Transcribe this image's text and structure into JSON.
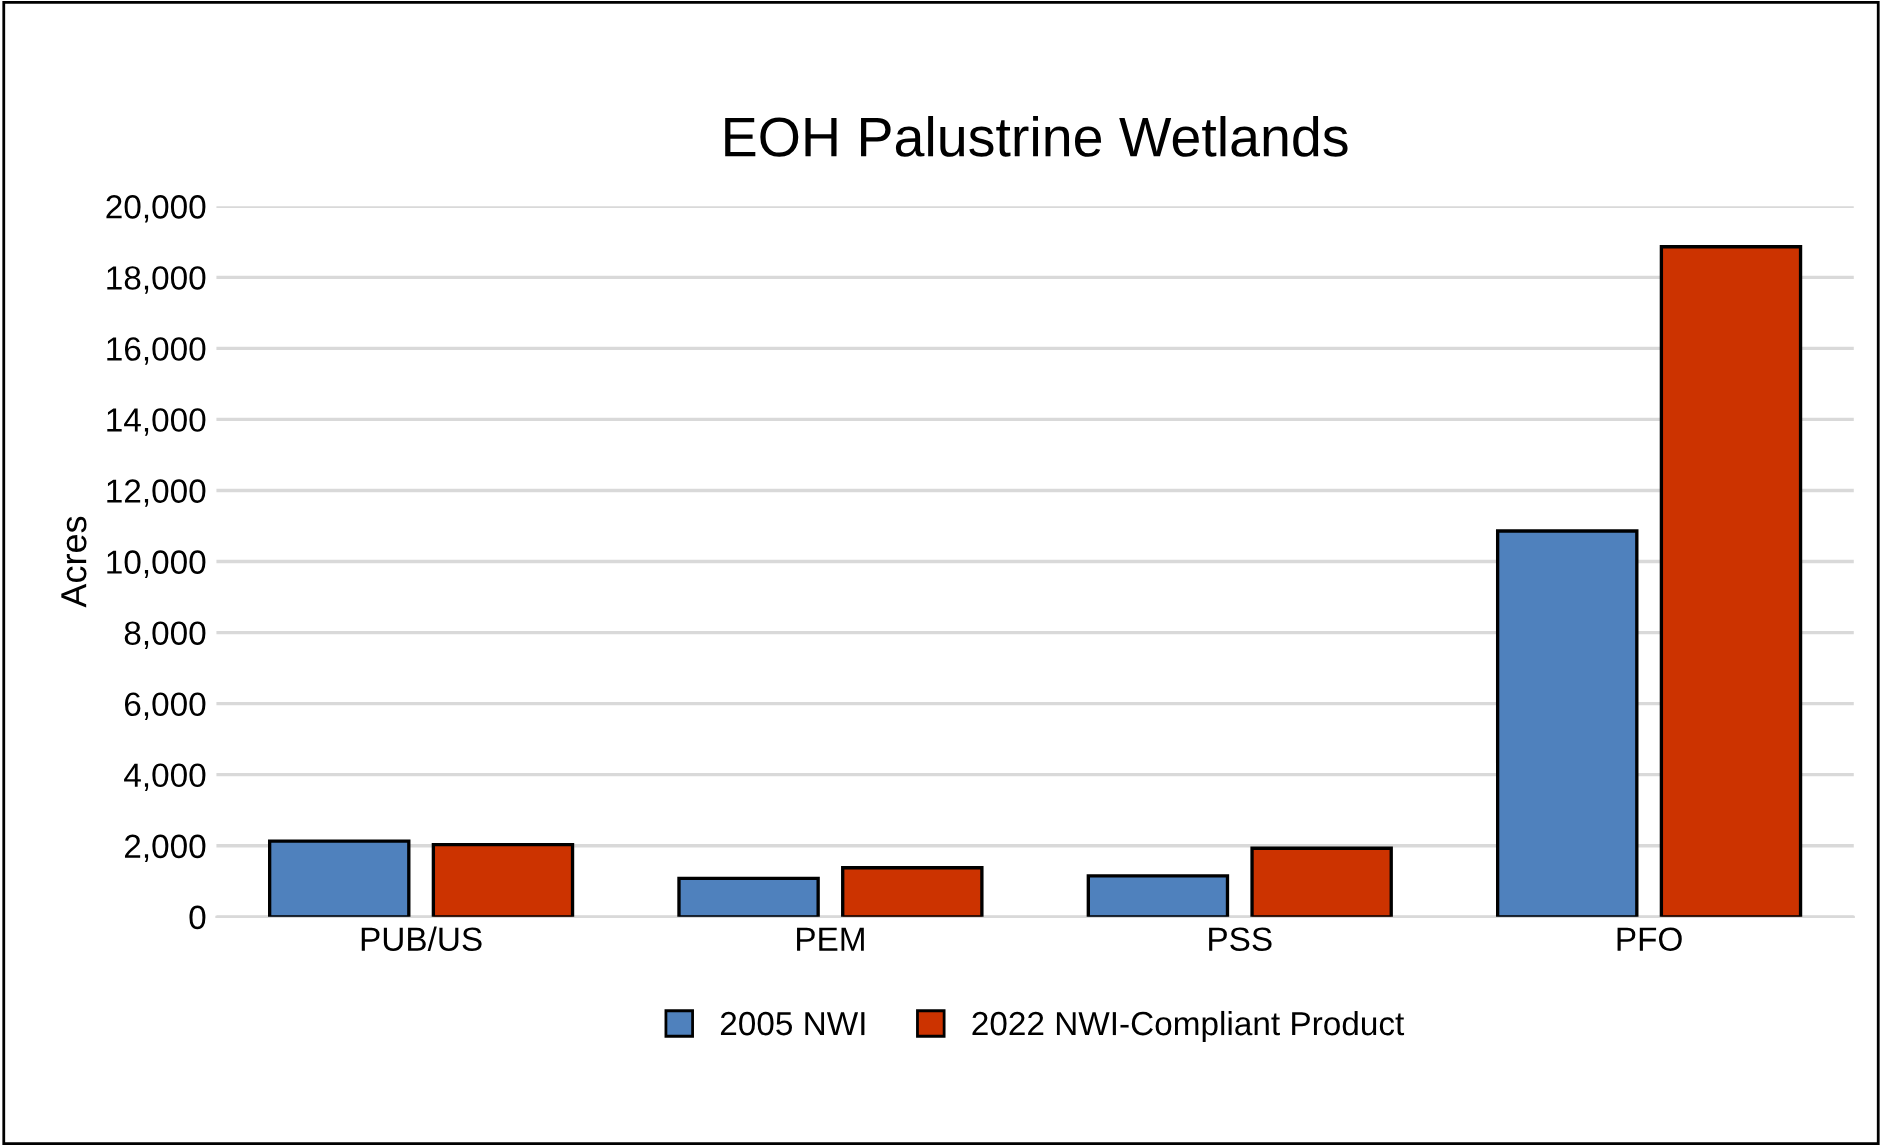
{
  "chart_data": {
    "type": "bar",
    "title": "EOH Palustrine Wetlands",
    "ylabel": "Acres",
    "categories": [
      "PUB/US",
      "PEM",
      "PSS",
      "PFO"
    ],
    "series": [
      {
        "name": "2005 NWI",
        "color": "#4f81bd",
        "values": [
          2130,
          1080,
          1150,
          10860
        ]
      },
      {
        "name": "2022 NWI-Compliant Product",
        "color": "#cc3300",
        "values": [
          2030,
          1380,
          1930,
          18860
        ]
      }
    ],
    "ylim": [
      0,
      20000
    ],
    "yticks": [
      {
        "value": 0,
        "label": "0"
      },
      {
        "value": 2000,
        "label": "2,000"
      },
      {
        "value": 4000,
        "label": "4,000"
      },
      {
        "value": 6000,
        "label": "6,000"
      },
      {
        "value": 8000,
        "label": "8,000"
      },
      {
        "value": 10000,
        "label": "10,000"
      },
      {
        "value": 12000,
        "label": "12,000"
      },
      {
        "value": 14000,
        "label": "14,000"
      },
      {
        "value": 16000,
        "label": "16,000"
      },
      {
        "value": 18000,
        "label": "18,000"
      },
      {
        "value": 20000,
        "label": "20,000"
      }
    ],
    "grid": "y",
    "legend": "bottom"
  }
}
